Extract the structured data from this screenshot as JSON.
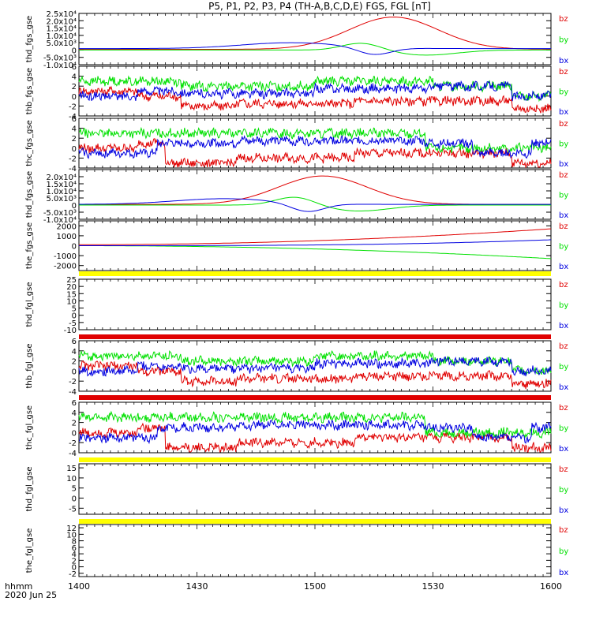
{
  "title": "P5, P1, P2, P3, P4 (TH-A,B,C,D,E) FGS, FGL [nT]",
  "footer": {
    "time_label": "hhmm",
    "date_label": "2020 Jun 25"
  },
  "x_axis": {
    "range": [
      "14:00",
      "16:00"
    ],
    "tick_labels": [
      "1400",
      "1430",
      "1500",
      "1530",
      "1600"
    ]
  },
  "colors": {
    "bz": "#e00000",
    "by": "#00e000",
    "bx": "#0000e0",
    "bar_yellow": "#ffff00",
    "bar_red": "#e00000"
  },
  "chart_data": [
    {
      "type": "line",
      "ylabel": "thd_fgs_gse",
      "ylim": [
        -10000,
        25000
      ],
      "y_ticks": [
        "2.5x10⁴",
        "2.0x10⁴",
        "1.5x10⁴",
        "1.0x10⁴",
        "5.0x10³",
        "0",
        "-5.0x10³",
        "-1.0x10⁴"
      ],
      "y_tick_values": [
        25000,
        20000,
        15000,
        10000,
        5000,
        0,
        -5000,
        -10000
      ],
      "series": [
        {
          "name": "bz",
          "kind": "bump",
          "center_min": 80,
          "peak": 22000,
          "width_min": 16,
          "base": 500
        },
        {
          "name": "by",
          "kind": "swing",
          "center_min": 72,
          "amp": 5000,
          "width_min": 7,
          "base": 0
        },
        {
          "name": "bx",
          "kind": "dip",
          "center_min": 75,
          "amp": -5000,
          "width_min": 6,
          "base": 1000
        }
      ]
    },
    {
      "type": "line",
      "ylabel": "thb_fgs_gse",
      "ylim": [
        -4,
        6
      ],
      "y_ticks": [
        "6",
        "4",
        "2",
        "0",
        "-2",
        "-4"
      ],
      "y_tick_values": [
        6,
        4,
        2,
        0,
        -2,
        -4
      ],
      "series": [
        {
          "name": "bz",
          "kind": "noise",
          "levels": [
            [
              0,
              1
            ],
            [
              15,
              0
            ],
            [
              26,
              -2
            ],
            [
              40,
              -1.5
            ],
            [
              70,
              -1
            ],
            [
              110,
              -2.5
            ]
          ]
        },
        {
          "name": "by",
          "kind": "noise",
          "levels": [
            [
              0,
              3
            ],
            [
              26,
              2
            ],
            [
              60,
              3
            ],
            [
              90,
              2
            ],
            [
              110,
              0
            ]
          ]
        },
        {
          "name": "bx",
          "kind": "noise",
          "levels": [
            [
              0,
              0
            ],
            [
              15,
              1
            ],
            [
              26,
              0.5
            ],
            [
              60,
              1.5
            ],
            [
              90,
              2
            ],
            [
              110,
              0
            ]
          ]
        }
      ]
    },
    {
      "type": "line",
      "ylabel": "thc_fgs_gse",
      "ylim": [
        -4,
        6
      ],
      "y_ticks": [
        "6",
        "4",
        "2",
        "0",
        "-2",
        "-4"
      ],
      "y_tick_values": [
        6,
        4,
        2,
        0,
        -2,
        -4
      ],
      "series": [
        {
          "name": "bz",
          "kind": "noise",
          "levels": [
            [
              0,
              0
            ],
            [
              15,
              1
            ],
            [
              22,
              -3
            ],
            [
              40,
              -2
            ],
            [
              70,
              -1
            ],
            [
              110,
              -3
            ]
          ]
        },
        {
          "name": "by",
          "kind": "noise",
          "levels": [
            [
              0,
              3
            ],
            [
              22,
              3
            ],
            [
              60,
              3
            ],
            [
              88,
              0
            ],
            [
              110,
              0
            ]
          ]
        },
        {
          "name": "bx",
          "kind": "noise",
          "levels": [
            [
              0,
              -1
            ],
            [
              20,
              1
            ],
            [
              40,
              1.5
            ],
            [
              88,
              1
            ],
            [
              100,
              -1
            ],
            [
              115,
              1
            ]
          ]
        }
      ]
    },
    {
      "type": "line",
      "ylabel": "thd_fgs_gse",
      "ylim": [
        -10000,
        25000
      ],
      "y_ticks": [
        "2.0x10⁴",
        "1.5x10⁴",
        "1.0x10⁴",
        "5.0x10³",
        "0",
        "-5.0x10³",
        "-1.0x10⁴"
      ],
      "y_tick_values": [
        20000,
        15000,
        10000,
        5000,
        0,
        -5000,
        -10000
      ],
      "series": [
        {
          "name": "bz",
          "kind": "bump",
          "center_min": 62,
          "peak": 20000,
          "width_min": 16,
          "base": 500
        },
        {
          "name": "by",
          "kind": "swing",
          "center_min": 55,
          "amp": 6000,
          "width_min": 7,
          "base": 0
        },
        {
          "name": "bx",
          "kind": "dip",
          "center_min": 58,
          "amp": -6000,
          "width_min": 6,
          "base": 500
        }
      ]
    },
    {
      "type": "line",
      "ylabel": "the_fgs_gse",
      "ylim": [
        -2500,
        2500
      ],
      "y_ticks": [
        "2000",
        "1000",
        "0",
        "-1000",
        "-2000"
      ],
      "y_tick_values": [
        2000,
        1000,
        0,
        -1000,
        -2000
      ],
      "series": [
        {
          "name": "bz",
          "kind": "ramp",
          "v0": 100,
          "v1": 1700,
          "power": 2
        },
        {
          "name": "by",
          "kind": "ramp",
          "v0": 0,
          "v1": -1300,
          "power": 2
        },
        {
          "name": "bx",
          "kind": "ramp",
          "v0": 0,
          "v1": 600,
          "power": 3
        }
      ]
    },
    {
      "type": "line",
      "ylabel": "thd_fgl_gse",
      "ylim": [
        -10,
        25
      ],
      "y_ticks": [
        "25",
        "20",
        "15",
        "10",
        "5",
        "0",
        "-5",
        "-10"
      ],
      "y_tick_values": [
        25,
        20,
        15,
        10,
        5,
        0,
        -5,
        -10
      ],
      "series": []
    },
    {
      "type": "line",
      "ylabel": "thb_fgl_gse",
      "ylim": [
        -4,
        6
      ],
      "y_ticks": [
        "6",
        "4",
        "2",
        "0",
        "-2",
        "-4"
      ],
      "y_tick_values": [
        6,
        4,
        2,
        0,
        -2,
        -4
      ],
      "series": [
        {
          "name": "bz",
          "kind": "noise",
          "levels": [
            [
              0,
              1
            ],
            [
              15,
              0
            ],
            [
              26,
              -2
            ],
            [
              40,
              -1.5
            ],
            [
              70,
              -1
            ],
            [
              110,
              -2.5
            ]
          ]
        },
        {
          "name": "by",
          "kind": "noise",
          "levels": [
            [
              0,
              3
            ],
            [
              26,
              2
            ],
            [
              60,
              3
            ],
            [
              90,
              2
            ],
            [
              110,
              0
            ]
          ]
        },
        {
          "name": "bx",
          "kind": "noise",
          "levels": [
            [
              0,
              0
            ],
            [
              15,
              1
            ],
            [
              26,
              0.5
            ],
            [
              60,
              1.5
            ],
            [
              90,
              2
            ],
            [
              110,
              0
            ]
          ]
        }
      ]
    },
    {
      "type": "line",
      "ylabel": "thc_fgl_gse",
      "ylim": [
        -4,
        6
      ],
      "y_ticks": [
        "6",
        "4",
        "2",
        "0",
        "-2",
        "-4"
      ],
      "y_tick_values": [
        6,
        4,
        2,
        0,
        -2,
        -4
      ],
      "series": [
        {
          "name": "bz",
          "kind": "noise",
          "levels": [
            [
              0,
              0
            ],
            [
              15,
              1
            ],
            [
              22,
              -3
            ],
            [
              40,
              -2
            ],
            [
              70,
              -1
            ],
            [
              110,
              -3
            ]
          ]
        },
        {
          "name": "by",
          "kind": "noise",
          "levels": [
            [
              0,
              3
            ],
            [
              22,
              3
            ],
            [
              60,
              3
            ],
            [
              88,
              0
            ],
            [
              110,
              0
            ]
          ]
        },
        {
          "name": "bx",
          "kind": "noise",
          "levels": [
            [
              0,
              -1
            ],
            [
              20,
              1
            ],
            [
              40,
              1.5
            ],
            [
              88,
              1
            ],
            [
              100,
              -1
            ],
            [
              115,
              1
            ]
          ]
        }
      ]
    },
    {
      "type": "line",
      "ylabel": "thd_fgl_gse",
      "ylim": [
        -8,
        17
      ],
      "y_ticks": [
        "15",
        "10",
        "5",
        "0",
        "-5"
      ],
      "y_tick_values": [
        15,
        10,
        5,
        0,
        -5
      ],
      "series": []
    },
    {
      "type": "line",
      "ylabel": "the_fgl_gse",
      "ylim": [
        -3,
        13
      ],
      "y_ticks": [
        "12",
        "10",
        "8",
        "6",
        "4",
        "2",
        "0",
        "-2"
      ],
      "y_tick_values": [
        12,
        10,
        8,
        6,
        4,
        2,
        0,
        -2
      ],
      "series": []
    }
  ],
  "legend": [
    "bz",
    "by",
    "bx"
  ],
  "status_bars": [
    {
      "after_panel": 4,
      "color": "bar_yellow"
    },
    {
      "after_panel": 5,
      "color": "bar_red"
    },
    {
      "after_panel": 6,
      "color": "bar_red"
    },
    {
      "after_panel": 7,
      "color": "bar_yellow"
    },
    {
      "after_panel": 8,
      "color": "bar_yellow"
    }
  ]
}
